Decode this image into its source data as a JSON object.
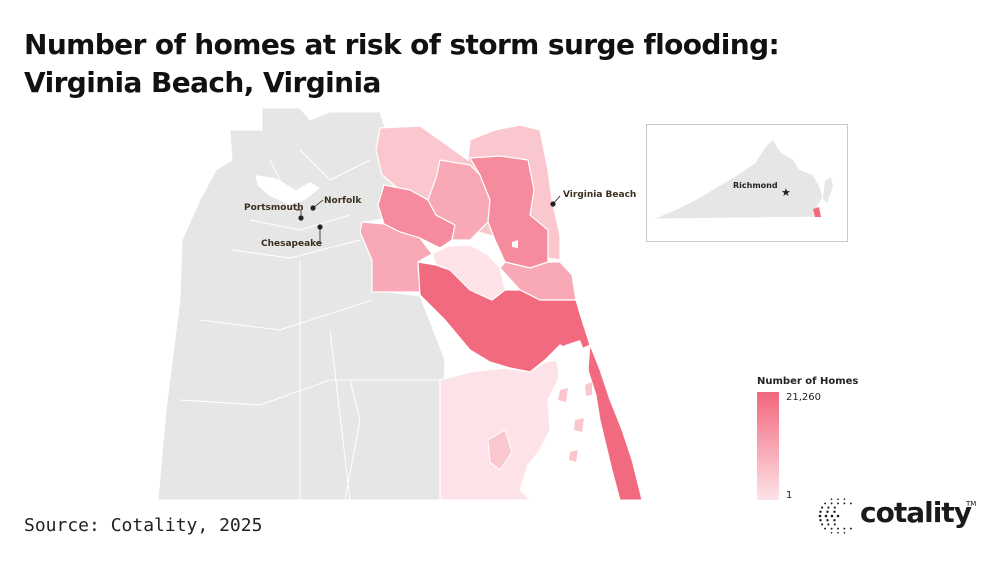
{
  "title": {
    "line1": "Number of homes at risk of storm surge flooding:",
    "line2": "Virginia Beach, Virginia"
  },
  "map_labels": {
    "norfolk": "Norfolk",
    "portsmouth": "Portsmouth",
    "chesapeake": "Chesapeake",
    "virginia_beach": "Virginia Beach"
  },
  "inset": {
    "capital_label": "Richmond",
    "capital_icon": "star-icon"
  },
  "legend": {
    "title": "Number of Homes",
    "max_label": "21,260",
    "min_label": "1",
    "color_max": "#f2667d",
    "color_min": "#fde3e7"
  },
  "source": "Source: Cotality, 2025",
  "logo": {
    "text": "cotality",
    "tm": "TM",
    "icon": "cotality-dot-sphere-icon"
  },
  "colors": {
    "background_land": "#e6e6e6",
    "boundary": "#ffffff",
    "highest": "#f26a80",
    "high": "#f58b9c",
    "mid": "#f8a9b5",
    "low": "#fbc7cf",
    "lowest": "#fde3e7"
  }
}
